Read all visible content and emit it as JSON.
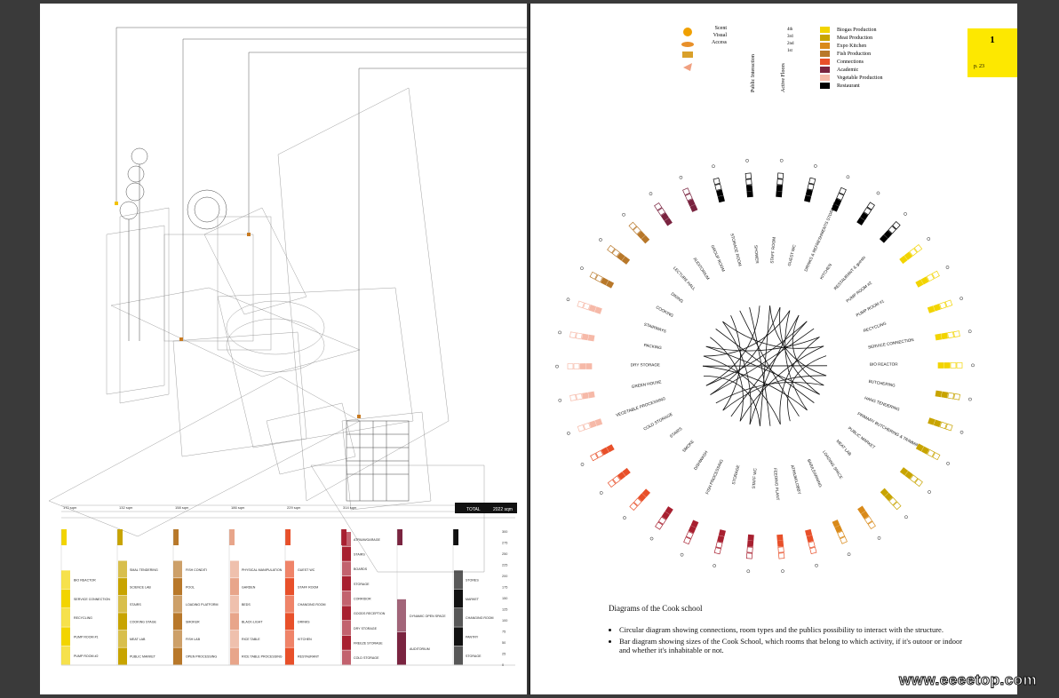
{
  "right_page": {
    "page_number": "1",
    "page_ref": "p. 23",
    "legend": [
      {
        "label": "Biogas Production",
        "color": "#f2d400"
      },
      {
        "label": "Meat Production",
        "color": "#c8a400"
      },
      {
        "label": "Expo Kitchen",
        "color": "#d98a1a"
      },
      {
        "label": "Fish Production",
        "color": "#b8782a"
      },
      {
        "label": "Connections",
        "color": "#e8502a"
      },
      {
        "label": "Academic",
        "color": "#7a2440"
      },
      {
        "label": "Vegetable Production",
        "color": "#f6b9a8"
      },
      {
        "label": "Restaurant",
        "color": "#000000"
      }
    ],
    "senses": [
      "Scent",
      "Visual",
      "Access"
    ],
    "floors": [
      "4th",
      "3rd",
      "2nd",
      "1st"
    ],
    "public_interaction_label": "Public Interaction",
    "active_floors_label": "Active Floors",
    "circle_labels": [
      "STAFF ROOM",
      "GUEST WC",
      "DRINKS & REFRESHMENTS STORAGE",
      "KITCHEN",
      "RESTAURANT & guests",
      "PUMP ROOM #2",
      "PUMP ROOM #1",
      "RECYCLING",
      "SERVICE CONNECTION",
      "BIO REACTOR",
      "BUTCHERING",
      "HANG TENDERING",
      "PRIMARY BUTCHERING & TRIMMING",
      "PUBLIC MARKET",
      "MEAT LAB",
      "LOADING SPACE",
      "BAR/LEARNING",
      "ATRIUM/LOBBY",
      "FEEDING PLANT",
      "STAFF WC",
      "STORAGE",
      "FISH PROCESSING",
      "DISHWASH",
      "SMOKE",
      "STAIRS",
      "COLD STORAGE",
      "VEGETABLE PROCESSING",
      "GREEN HOUSE",
      "DRY STORAGE",
      "PACKING",
      "STAIRWAYS",
      "COOKING",
      "DINING",
      "LECTURE HALL",
      "AUDITORIUM",
      "GROUP ROOM",
      "STORAGE ROOM",
      "SHOWER"
    ],
    "caption_title": "Diagrams of the Cook school",
    "caption_bullets": [
      "Circular diagram showing connections, room types and the publics possibility to  interact with the structure.",
      "Bar diagram showing sizes of the Cook School, which rooms that belong to which activity, if it's outoor or indoor and whether it's inhabitable or not."
    ]
  },
  "left_page": {
    "bar_columns": [
      {
        "color": "#f2d400",
        "top": "170 sqm",
        "rooms": [
          "BIO REACTOR",
          "SERVICE CONNECTION",
          "RECYCLING",
          "PUMP ROOM #1",
          "PUMP ROOM #2"
        ]
      },
      {
        "color": "#c8a400",
        "top": "132 sqm",
        "rooms": [
          "SMAL TENDERING",
          "SCIENCE LAB",
          "STAIRS",
          "COOKING STAGE",
          "MEAT LAB",
          "PUBLIC MARKET"
        ]
      },
      {
        "color": "#b8782a",
        "top": "158 sqm",
        "rooms": [
          "FISH CONDITI",
          "POOL",
          "LOADING PLATFORM",
          "SMOKER",
          "FISH LAB",
          "OPEN PROCESSING"
        ]
      },
      {
        "color": "#e8a58a",
        "top": "186 sqm",
        "rooms": [
          "PHYSICAL MANIPULATION",
          "GARDEN",
          "BEDS",
          "BLACK-LIGHT",
          "RICE TABLE",
          "RICE TABLE PROCESSING"
        ]
      },
      {
        "color": "#e8502a",
        "top": "229 sqm",
        "rooms": [
          "GUEST WC",
          "STAFF ROOM",
          "CHANGING ROOM",
          "DRINKS",
          "KITCHEN",
          "RESTAURANT"
        ]
      },
      {
        "color": "#a82030",
        "top": "314 sqm",
        "rooms": [
          "ATRIUM/GARAGE",
          "STAIRS",
          "BOARDS",
          "STORAGE",
          "CORRIDOR",
          "GOODS RECEPTION",
          "DRY STORAGE",
          "FREEZE STORAGE",
          "COLD STORAGE"
        ]
      },
      {
        "color": "#7a2440",
        "top": "",
        "rooms": [
          "DYNAMIC OPEN SPACE",
          "AUDITORIUM"
        ]
      },
      {
        "color": "#111111",
        "top": "279 sqm",
        "rooms": [
          "STORES",
          "MARKET",
          "CHANGING ROOM",
          "PANTRY",
          "STORAGE"
        ]
      }
    ],
    "axis_values": [
      "300",
      "275",
      "250",
      "225",
      "200",
      "175",
      "150",
      "125",
      "100",
      "75",
      "50",
      "25",
      "0"
    ],
    "table_header": [
      "TOTAL",
      "2022 sqm"
    ]
  },
  "watermark": "www.eeeetop.com"
}
